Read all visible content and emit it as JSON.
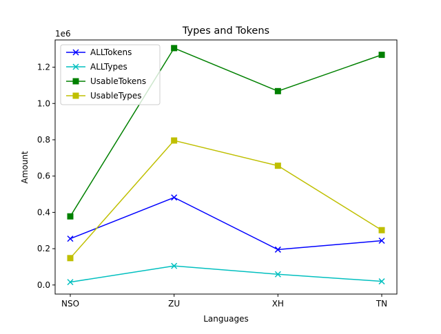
{
  "chart_data": {
    "type": "line",
    "title": "Types and Tokens",
    "xlabel": "Languages",
    "ylabel": "Amount",
    "y_scale_note": "1e6",
    "categories": [
      "NSO",
      "ZU",
      "XH",
      "TN"
    ],
    "ylim": [
      -0.05,
      1.35
    ],
    "yticks": [
      0.0,
      0.2,
      0.4,
      0.6,
      0.8,
      1.0,
      1.2
    ],
    "ytick_labels": [
      "0.0",
      "0.2",
      "0.4",
      "0.6",
      "0.8",
      "1.0",
      "1.2"
    ],
    "units_multiplier": 1000000,
    "grid": false,
    "legend_position": "top-left",
    "series": [
      {
        "name": "ALLTokens",
        "color": "#0000ff",
        "marker": "x",
        "values": [
          0.255,
          0.482,
          0.195,
          0.244
        ]
      },
      {
        "name": "ALLTypes",
        "color": "#00bfbf",
        "marker": "x",
        "values": [
          0.016,
          0.105,
          0.059,
          0.02
        ]
      },
      {
        "name": "UsableTokens",
        "color": "#008000",
        "marker": "square",
        "values": [
          0.378,
          1.305,
          1.068,
          1.268
        ]
      },
      {
        "name": "UsableTypes",
        "color": "#bfbf00",
        "marker": "square",
        "values": [
          0.148,
          0.796,
          0.657,
          0.302
        ]
      }
    ]
  }
}
